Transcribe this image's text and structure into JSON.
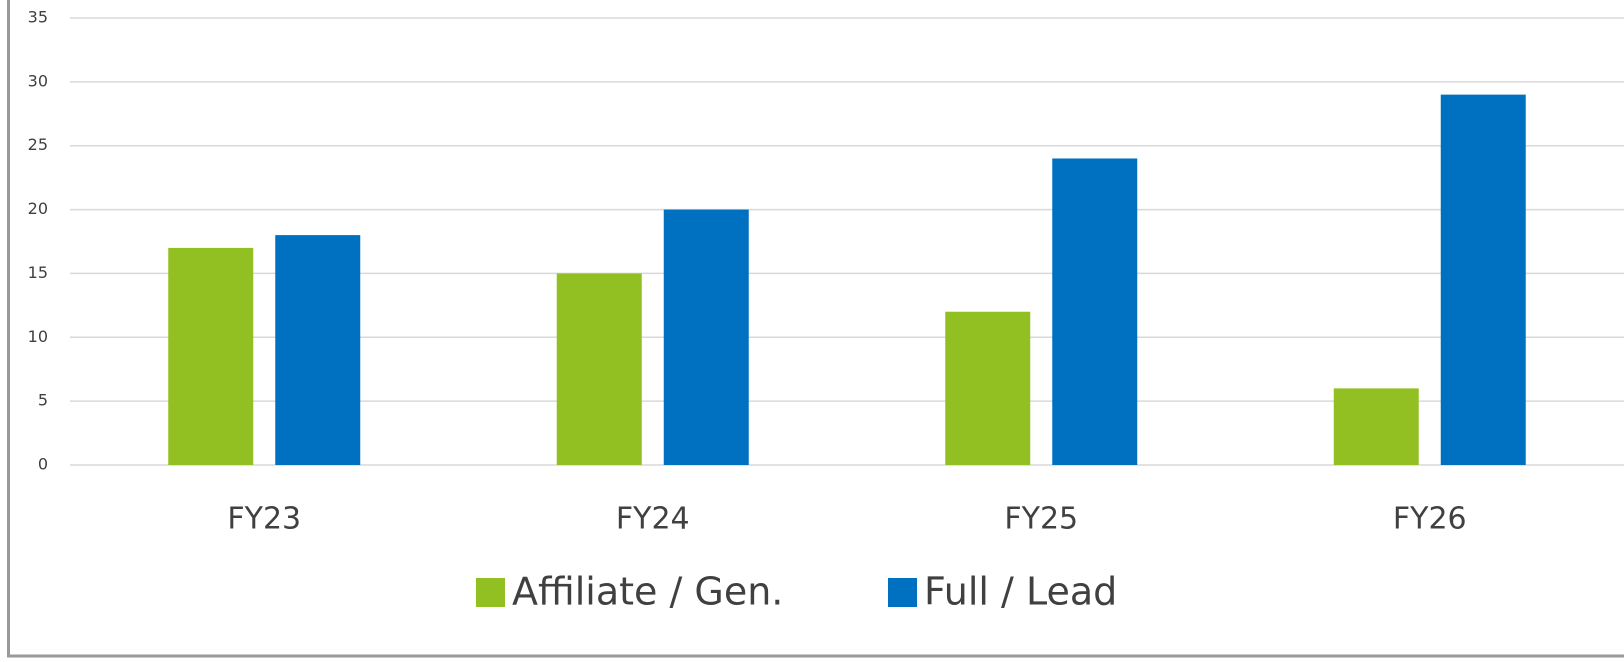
{
  "chart_data": {
    "type": "bar",
    "categories": [
      "FY23",
      "FY24",
      "FY25",
      "FY26"
    ],
    "series": [
      {
        "name": "Affiliate / Gen.",
        "color": "#92c023",
        "values": [
          17,
          15,
          12,
          6
        ]
      },
      {
        "name": "Full / Lead",
        "color": "#0070c0",
        "values": [
          18,
          20,
          24,
          29
        ]
      }
    ],
    "ylim": [
      0,
      35
    ],
    "yticks": [
      0,
      5,
      10,
      15,
      20,
      25,
      30,
      35
    ],
    "grid": true,
    "legend": "bottom"
  }
}
